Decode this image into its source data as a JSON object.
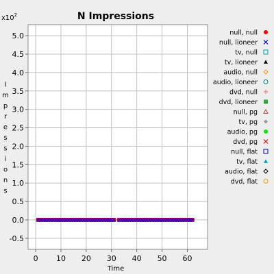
{
  "chart_data": {
    "type": "scatter",
    "title": "N Impressions",
    "xlabel": "Time",
    "ylabel": "Impressions",
    "y_multiplier_label": "x10",
    "y_multiplier_exp": "2",
    "xlim": [
      -3,
      68
    ],
    "ylim": [
      -0.8,
      5.3
    ],
    "x_ticks": [
      "0",
      "10",
      "20",
      "30",
      "40",
      "50",
      "60"
    ],
    "x_tick_values": [
      0,
      10,
      20,
      30,
      40,
      50,
      60
    ],
    "y_ticks": [
      "-0.5",
      "0.0",
      "0.5",
      "1.0",
      "1.5",
      "2.0",
      "2.5",
      "3.0",
      "3.5",
      "4.0",
      "4.5",
      "5.0"
    ],
    "y_tick_values": [
      -0.5,
      0.0,
      0.5,
      1.0,
      1.5,
      2.0,
      2.5,
      3.0,
      3.5,
      4.0,
      4.5,
      5.0
    ],
    "grid": true,
    "legend_position": "right",
    "series": [
      {
        "name": "null, null",
        "marker": "dot",
        "color": "#ff0000"
      },
      {
        "name": "null, lioneer",
        "marker": "x",
        "color": "#0000ff"
      },
      {
        "name": "tv, null",
        "marker": "square",
        "color": "#00a0a0"
      },
      {
        "name": "tv, lioneer",
        "marker": "triangle",
        "color": "#000000"
      },
      {
        "name": "audio, null",
        "marker": "diamond",
        "color": "#ff9900"
      },
      {
        "name": "audio, lioneer",
        "marker": "circle",
        "color": "#008888"
      },
      {
        "name": "dvd, null",
        "marker": "plus",
        "color": "#ff7777"
      },
      {
        "name": "dvd, lioneer",
        "marker": "filled-square",
        "color": "#33aa33"
      },
      {
        "name": "null, pg",
        "marker": "triangle-open",
        "color": "#aa4444"
      },
      {
        "name": "tv, pg",
        "marker": "filled-diamond",
        "color": "#999999"
      },
      {
        "name": "audio, pg",
        "marker": "dot",
        "color": "#00ee00"
      },
      {
        "name": "dvd, pg",
        "marker": "x",
        "color": "#ff0000"
      },
      {
        "name": "null, flat",
        "marker": "square",
        "color": "#0000cc"
      },
      {
        "name": "tv, flat",
        "marker": "triangle",
        "color": "#00aaaa"
      },
      {
        "name": "audio, flat",
        "marker": "diamond",
        "color": "#000000"
      },
      {
        "name": "dvd, flat",
        "marker": "circle",
        "color": "#ff9900"
      }
    ],
    "points_series_0": {
      "x_start": 1,
      "x_end": 62,
      "x_gap": [
        32
      ],
      "y": 0.0
    }
  }
}
